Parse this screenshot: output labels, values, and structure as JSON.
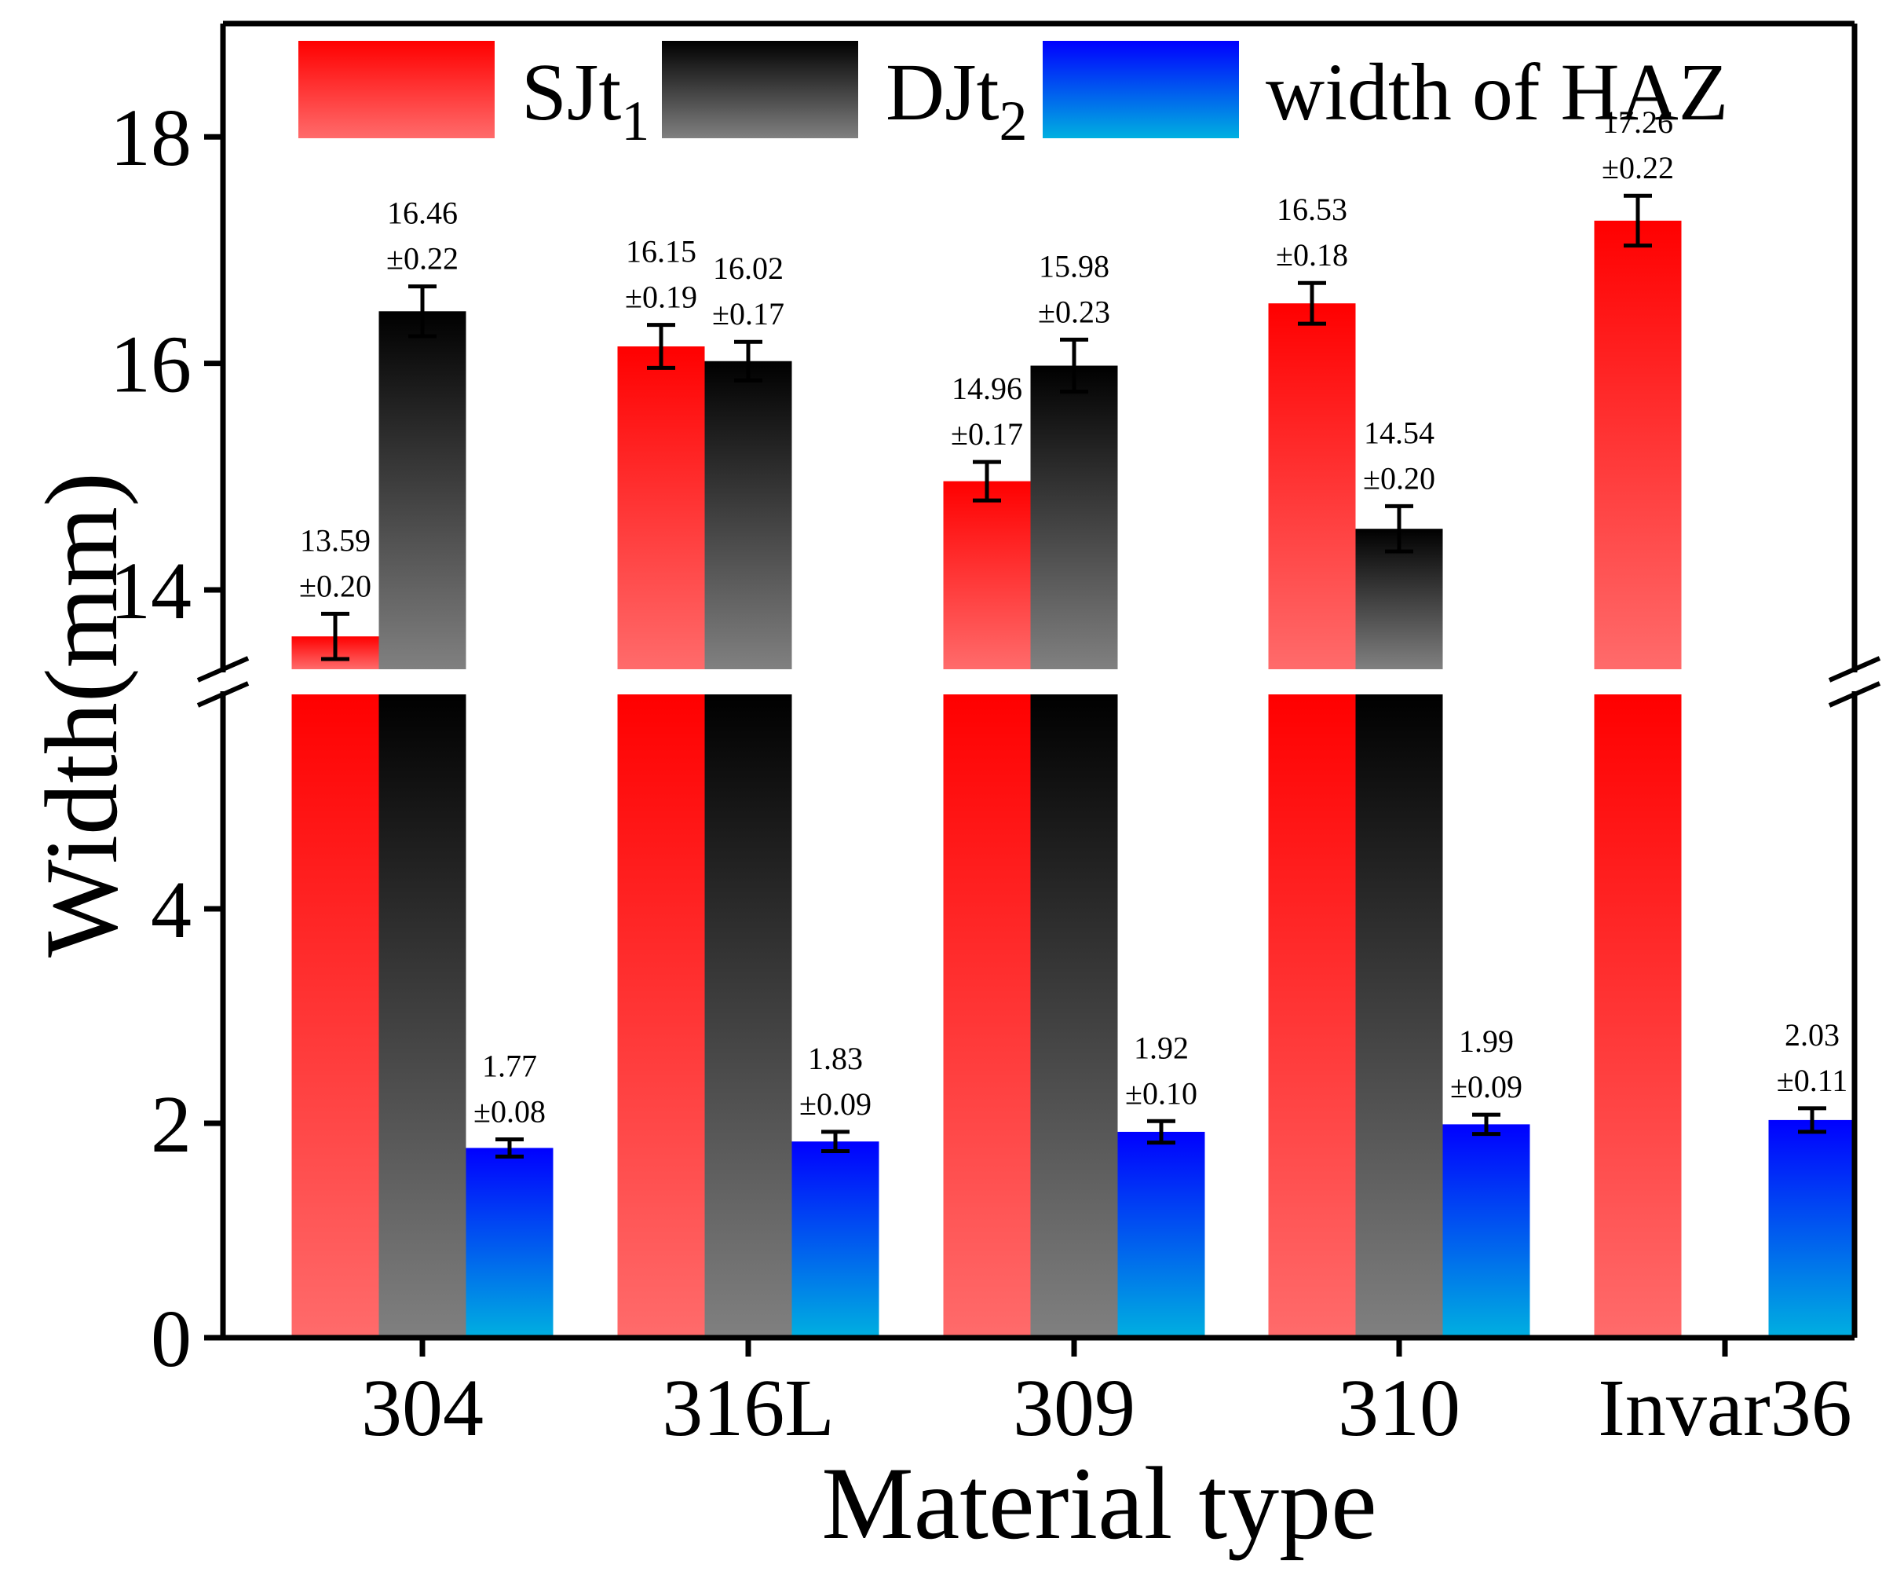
{
  "chart_data": {
    "type": "bar",
    "xlabel": "Material type",
    "ylabel": "Width(mm)",
    "categories": [
      "304",
      "316L",
      "309",
      "310",
      "Invar36"
    ],
    "series": [
      {
        "name": "SJt",
        "name_subscript": "1",
        "color_top": "#ff0000",
        "color_bottom": "#ff6b6b",
        "values": [
          13.59,
          16.15,
          14.96,
          16.53,
          17.26
        ],
        "errors": [
          0.2,
          0.19,
          0.17,
          0.18,
          0.22
        ],
        "value_labels": [
          "13.59",
          "16.15",
          "14.96",
          "16.53",
          "17.26"
        ],
        "error_labels": [
          "±0.20",
          "±0.19",
          "±0.17",
          "±0.18",
          "±0.22"
        ]
      },
      {
        "name": "DJt",
        "name_subscript": "2",
        "color_top": "#000000",
        "color_bottom": "#808080",
        "values": [
          16.46,
          16.02,
          15.98,
          14.54,
          null
        ],
        "errors": [
          0.22,
          0.17,
          0.23,
          0.2,
          null
        ],
        "value_labels": [
          "16.46",
          "16.02",
          "15.98",
          "14.54",
          null
        ],
        "error_labels": [
          "±0.22",
          "±0.17",
          "±0.23",
          "±0.20",
          null
        ]
      },
      {
        "name": "width of HAZ",
        "name_subscript": "",
        "color_top": "#0000ff",
        "color_bottom": "#00b0e0",
        "values": [
          1.77,
          1.83,
          1.92,
          1.99,
          2.03
        ],
        "errors": [
          0.08,
          0.09,
          0.1,
          0.09,
          0.11
        ],
        "value_labels": [
          "1.77",
          "1.83",
          "1.92",
          "1.99",
          "2.03"
        ],
        "error_labels": [
          "±0.08",
          "±0.09",
          "±0.10",
          "±0.09",
          "±0.11"
        ]
      }
    ],
    "y_axis_break": true,
    "lower_segment": {
      "ylim": [
        0,
        6
      ],
      "ticks": [
        "0",
        "2",
        "4"
      ]
    },
    "upper_segment": {
      "ylim": [
        13.3,
        19
      ],
      "ticks": [
        "14",
        "16",
        "18"
      ]
    },
    "legend_position": "top",
    "grid": false
  }
}
